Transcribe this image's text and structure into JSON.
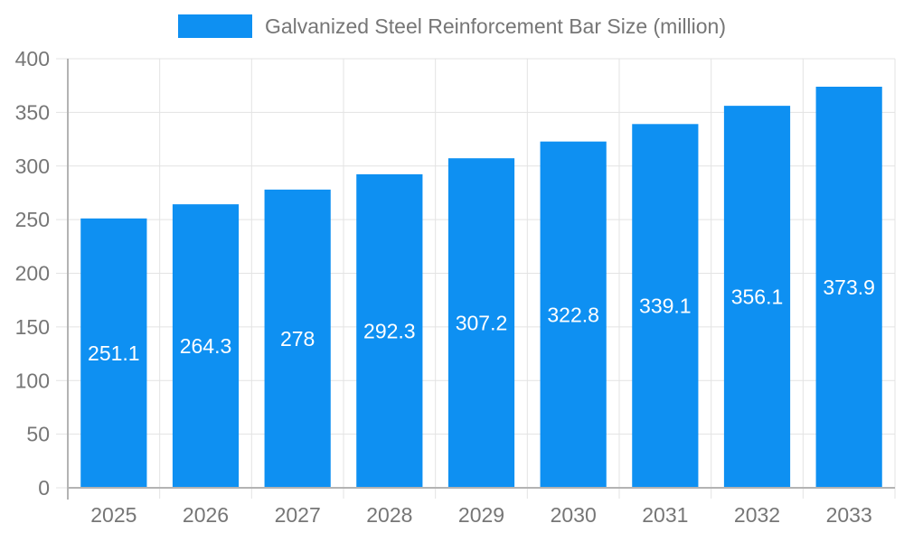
{
  "legend": {
    "label": "Galvanized Steel Reinforcement Bar Size (million)"
  },
  "colors": {
    "bar": "#0E90F2",
    "grid": "#e3e3e3",
    "axis": "#b3b3b3",
    "text": "#767676",
    "bar_label": "#ffffff",
    "background": "#ffffff"
  },
  "chart_data": {
    "type": "bar",
    "title": "Galvanized Steel Reinforcement Bar Size (million)",
    "series_name": "Galvanized Steel Reinforcement Bar Size (million)",
    "categories": [
      "2025",
      "2026",
      "2027",
      "2028",
      "2029",
      "2030",
      "2031",
      "2032",
      "2033"
    ],
    "values": [
      251.1,
      264.3,
      278,
      292.3,
      307.2,
      322.8,
      339.1,
      356.1,
      373.9
    ],
    "xlabel": "",
    "ylabel": "",
    "ylim": [
      0,
      400
    ],
    "ytick_step": 50,
    "yticks": [
      0,
      50,
      100,
      150,
      200,
      250,
      300,
      350,
      400
    ],
    "grid": true,
    "legend_position": "top",
    "value_label_position": "inside-center"
  }
}
